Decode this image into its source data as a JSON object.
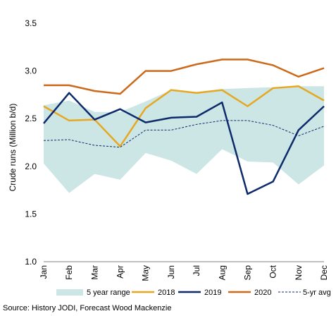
{
  "chart_data": {
    "type": "line",
    "categories": [
      "Jan",
      "Feb",
      "Mar",
      "Apr",
      "May",
      "Jun",
      "Jul",
      "Aug",
      "Sep",
      "Oct",
      "Nov",
      "Dec"
    ],
    "ylabel": "Crude runs (Million b/d)",
    "ylim": [
      1.0,
      3.5
    ],
    "yticks": [
      "1.0",
      "1.5",
      "2.0",
      "2.5",
      "3.0",
      "3.5"
    ],
    "grid": false,
    "legend_position": "bottom",
    "range": {
      "name": "5 year range",
      "color": "#cce6e5",
      "low": [
        2.03,
        1.72,
        1.92,
        1.86,
        2.14,
        2.06,
        1.92,
        2.18,
        2.05,
        2.04,
        1.81,
        2.01
      ],
      "high": [
        2.64,
        2.69,
        2.57,
        2.57,
        2.68,
        2.8,
        2.78,
        2.81,
        2.82,
        2.83,
        2.84,
        2.84
      ]
    },
    "series": [
      {
        "name": "2018",
        "color": "#e6a822",
        "width": 2.5,
        "dash": "",
        "values": [
          2.63,
          2.48,
          2.49,
          2.21,
          2.61,
          2.8,
          2.77,
          2.8,
          2.63,
          2.82,
          2.84,
          2.69
        ]
      },
      {
        "name": "2019",
        "color": "#0d2a6b",
        "width": 2.5,
        "dash": "",
        "values": [
          2.45,
          2.77,
          2.49,
          2.6,
          2.46,
          2.51,
          2.52,
          2.67,
          1.71,
          1.84,
          2.38,
          2.63
        ]
      },
      {
        "name": "2020",
        "color": "#cc6a1b",
        "width": 2.5,
        "dash": "",
        "values": [
          2.85,
          2.85,
          2.79,
          2.76,
          3.0,
          3.0,
          3.07,
          3.12,
          3.12,
          3.06,
          2.94,
          3.03
        ]
      },
      {
        "name": "5-yr avg",
        "color": "#0d2a6b",
        "width": 1,
        "dash": "3,2",
        "values": [
          2.27,
          2.28,
          2.22,
          2.2,
          2.38,
          2.38,
          2.44,
          2.48,
          2.48,
          2.43,
          2.32,
          2.42
        ]
      }
    ]
  },
  "source": "Source: History JODI,  Forecast Wood Mackenzie"
}
